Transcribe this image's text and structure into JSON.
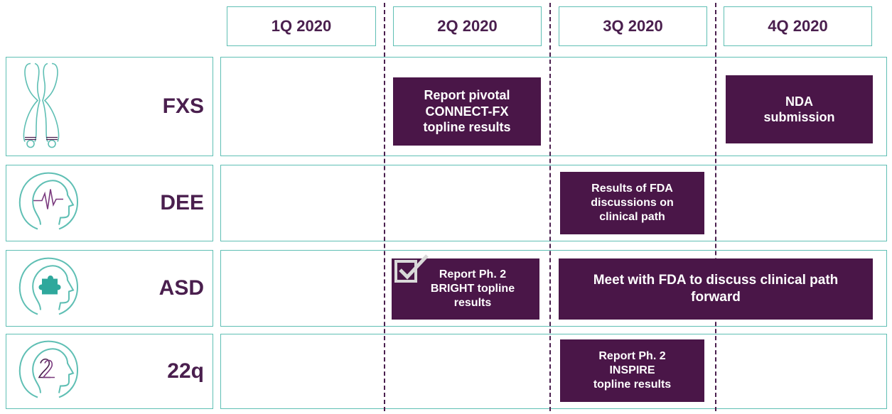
{
  "colors": {
    "accent": "#5fbfb4",
    "brand": "#4a1648",
    "text": "#4a1f4e"
  },
  "quarters": [
    "1Q 2020",
    "2Q 2020",
    "3Q 2020",
    "4Q 2020"
  ],
  "rows": [
    {
      "label": "FXS",
      "icon": "chromosome-icon"
    },
    {
      "label": "DEE",
      "icon": "brain-wave-head-icon"
    },
    {
      "label": "ASD",
      "icon": "puzzle-head-icon"
    },
    {
      "label": "22q",
      "icon": "22-head-icon"
    }
  ],
  "milestones": {
    "fxs_2q": "Report pivotal\nCONNECT-FX\ntopline results",
    "fxs_4q": "NDA\nsubmission",
    "dee_3q": "Results of FDA\ndiscussions on\nclinical path",
    "asd_2q": "Report Ph. 2\nBRIGHT topline\nresults",
    "asd_3q4q": "Meet with FDA to discuss clinical path\nforward",
    "q22_3q": "Report Ph. 2\nINSPIRE\ntopline results"
  }
}
